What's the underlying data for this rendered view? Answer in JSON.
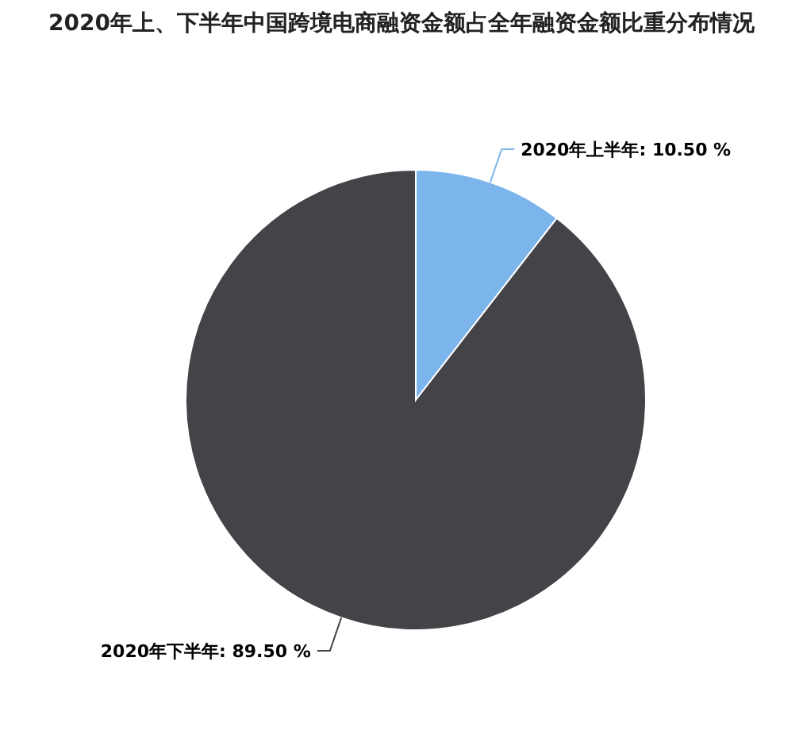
{
  "chart_data": {
    "type": "pie",
    "title": "2020年上、下半年中国跨境电商融资金额占全年融资金额比重分布情况",
    "categories": [
      "2020年上半年",
      "2020年下半年"
    ],
    "values": [
      10.5,
      89.5
    ],
    "colors": [
      "#7cb5ec",
      "#434348"
    ],
    "value_labels": [
      "10.50 %",
      "89.50 %"
    ]
  }
}
